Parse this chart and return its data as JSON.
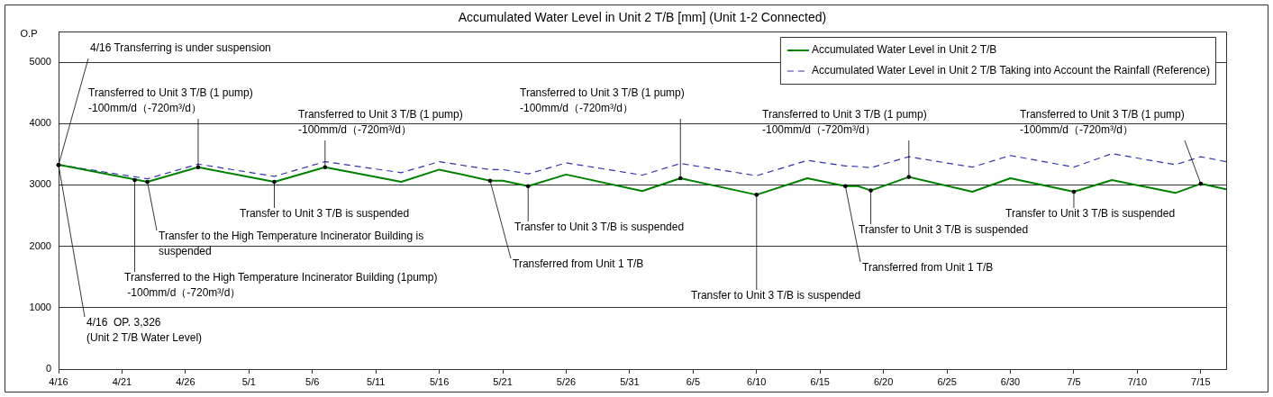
{
  "chart_data": {
    "type": "line",
    "title": "Accumulated Water Level in Unit 2 T/B [mm] (Unit 1-2 Connected)",
    "ylabel": "O.P",
    "x": [
      "--04-16",
      "--04-23",
      "--04-27",
      "--05-03",
      "--05-07",
      "--05-13",
      "--05-16",
      "--05-20",
      "--05-21",
      "--05-23",
      "--05-26",
      "--06-01",
      "--06-04",
      "--06-10",
      "--06-14",
      "--06-17",
      "--06-18",
      "--06-19",
      "--06-22",
      "--06-27",
      "--06-30",
      "--07-05",
      "--07-08",
      "--07-13",
      "--07-15",
      "--07-17"
    ],
    "series": [
      {
        "name": "Accumulated Water Level in Unit 2 T/B",
        "color": "#008000",
        "line_style": "solid",
        "values": [
          3330,
          3050,
          3290,
          3050,
          3290,
          3050,
          3250,
          3070,
          3070,
          2980,
          3170,
          2900,
          3110,
          2840,
          3110,
          2980,
          2980,
          2910,
          3130,
          2890,
          3110,
          2890,
          3080,
          2870,
          3020,
          2930
        ]
      },
      {
        "name": "Accumulated Water Level in Unit 2 T/B Taking into Account the Rainfall (Reference)",
        "color": "#3333aa",
        "line_style": "dashed",
        "values": [
          3330,
          3100,
          3340,
          3140,
          3380,
          3200,
          3380,
          3250,
          3250,
          3180,
          3360,
          3160,
          3350,
          3150,
          3400,
          3310,
          3300,
          3280,
          3460,
          3290,
          3480,
          3290,
          3510,
          3330,
          3460,
          3380
        ]
      }
    ],
    "xlim": [
      "--04-16",
      "--07-17"
    ],
    "xticks": [
      {
        "value": "--04-16",
        "label": "4/16"
      },
      {
        "value": "--04-21",
        "label": "4/21"
      },
      {
        "value": "--04-26",
        "label": "4/26"
      },
      {
        "value": "--05-01",
        "label": "5/1"
      },
      {
        "value": "--05-06",
        "label": "5/6"
      },
      {
        "value": "--05-11",
        "label": "5/11"
      },
      {
        "value": "--05-16",
        "label": "5/16"
      },
      {
        "value": "--05-21",
        "label": "5/21"
      },
      {
        "value": "--05-26",
        "label": "5/26"
      },
      {
        "value": "--05-31",
        "label": "5/31"
      },
      {
        "value": "--06-05",
        "label": "6/5"
      },
      {
        "value": "--06-10",
        "label": "6/10"
      },
      {
        "value": "--06-15",
        "label": "6/15"
      },
      {
        "value": "--06-20",
        "label": "6/20"
      },
      {
        "value": "--06-25",
        "label": "6/25"
      },
      {
        "value": "--06-30",
        "label": "6/30"
      },
      {
        "value": "--07-05",
        "label": "7/5"
      },
      {
        "value": "--07-10",
        "label": "7/10"
      },
      {
        "value": "--07-15",
        "label": "7/15"
      }
    ],
    "ylim": [
      0,
      5500
    ],
    "yticks": [
      0,
      1000,
      2000,
      3000,
      4000,
      5000
    ],
    "grid": "y",
    "legend": "top right",
    "marker": "none",
    "annotations": [
      {
        "text": "4/16 Transferring is under suspension",
        "x": "--04-16",
        "y": 3326
      },
      {
        "text": "Transferred to Unit 3 T/B (1 pump)\n-100mm/d（-720m³/d）",
        "x": "--04-27",
        "y": 3290
      },
      {
        "text": "Transferred to Unit 3 T/B (1 pump)\n-100mm/d（-720m³/d）",
        "x": "--05-07",
        "y": 3290
      },
      {
        "text": "Transferred to Unit 3 T/B (1 pump)\n-100mm/d（-720m³/d）",
        "x": "--06-04",
        "y": 3110
      },
      {
        "text": "Transferred to Unit 3 T/B (1 pump)\n-100mm/d（-720m³/d）",
        "x": "--06-22",
        "y": 3130
      },
      {
        "text": "Transferred to Unit 3 T/B (1 pump)\n-100mm/d（-720m³/d）",
        "x": "--07-15",
        "y": 3020
      },
      {
        "text": "Transfer to Unit 3 T/B is suspended",
        "x": "--05-03",
        "y": 3050
      },
      {
        "text": "Transfer to the High Temperature Incinerator Building is\nsuspended",
        "x": "--04-23",
        "y": 3050
      },
      {
        "text": "Transferred to the High Temperature Incinerator Building (1pump)\n -100mm/d（-720m³/d）",
        "x": "--04-22",
        "y": 3080
      },
      {
        "text": "Transfer to Unit 3 T/B is suspended",
        "x": "--05-23",
        "y": 2980
      },
      {
        "text": "Transferred from Unit 1 T/B",
        "x": "--05-20",
        "y": 3070
      },
      {
        "text": "Transfer to Unit 3 T/B is suspended",
        "x": "--06-10",
        "y": 2840
      },
      {
        "text": "Transfer to Unit 3 T/B is suspended",
        "x": "--06-19",
        "y": 2910
      },
      {
        "text": "Transferred from Unit 1 T/B",
        "x": "--06-17",
        "y": 2980
      },
      {
        "text": "Transfer to Unit 3 T/B is suspended",
        "x": "--07-05",
        "y": 2890
      },
      {
        "text": "4/16  OP. 3,326\n(Unit 2 T/B Water Level)",
        "x": "--04-16",
        "y": 3326
      }
    ]
  }
}
